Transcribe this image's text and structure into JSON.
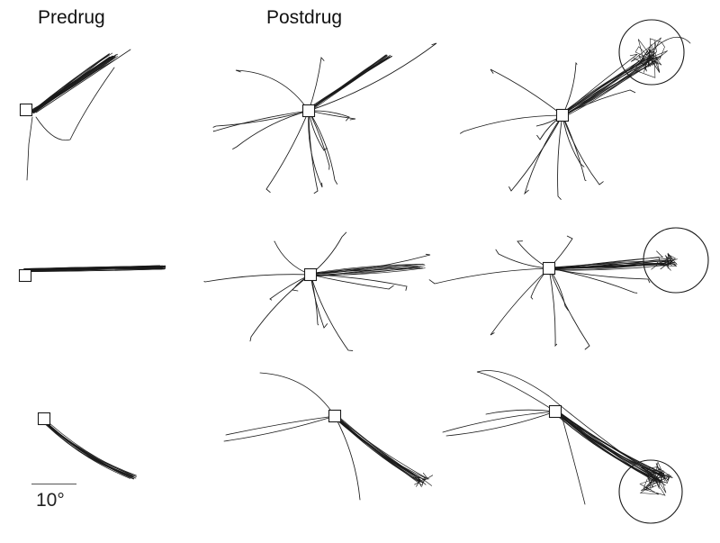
{
  "figure": {
    "column_labels": {
      "predrug": "Predrug",
      "postdrug": "Postdrug"
    },
    "scale_bar_label": "10°",
    "trace_color": "#1a1a1a",
    "panels": [
      {
        "name": "panel-row1-predrug",
        "row": 1,
        "column": 1,
        "target_circle": false
      },
      {
        "name": "panel-row1-postdrug-a",
        "row": 1,
        "column": 2,
        "target_circle": false
      },
      {
        "name": "panel-row1-postdrug-b",
        "row": 1,
        "column": 3,
        "target_circle": true
      },
      {
        "name": "panel-row2-predrug",
        "row": 2,
        "column": 1,
        "target_circle": false
      },
      {
        "name": "panel-row2-postdrug-a",
        "row": 2,
        "column": 2,
        "target_circle": false
      },
      {
        "name": "panel-row2-postdrug-b",
        "row": 2,
        "column": 3,
        "target_circle": true
      },
      {
        "name": "panel-row3-predrug",
        "row": 3,
        "column": 1,
        "target_circle": false
      },
      {
        "name": "panel-row3-postdrug-a",
        "row": 3,
        "column": 2,
        "target_circle": false
      },
      {
        "name": "panel-row3-postdrug-b",
        "row": 3,
        "column": 3,
        "target_circle": true
      }
    ]
  }
}
